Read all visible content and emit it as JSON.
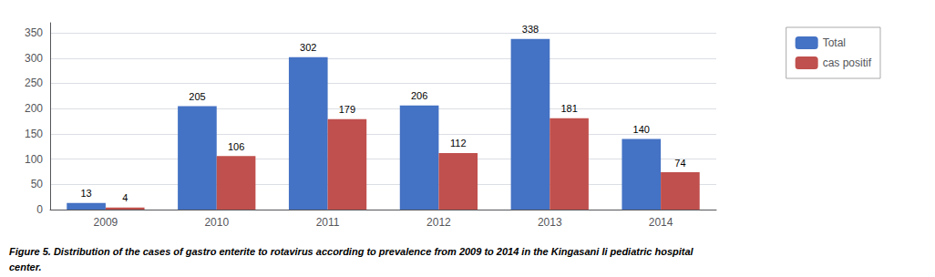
{
  "chart_data": {
    "type": "bar",
    "categories": [
      "2009",
      "2010",
      "2011",
      "2012",
      "2013",
      "2014"
    ],
    "series": [
      {
        "name": "Total",
        "color": "#4472C4",
        "values": [
          13,
          205,
          302,
          206,
          338,
          140
        ]
      },
      {
        "name": "cas positif",
        "color": "#C0504D",
        "values": [
          4,
          106,
          179,
          112,
          181,
          74
        ]
      }
    ],
    "ylim": [
      0,
      370
    ],
    "yticks": [
      0,
      50,
      100,
      150,
      200,
      250,
      300,
      350
    ],
    "grid": true,
    "legend": "right",
    "data_labels": true,
    "annotations": [
      "Figure 5. Distribution of the cases of gastro enterite to rotavirus according to prevalence from 2009 to 2014 in the Kingasani Ii pediatric hospital",
      "center."
    ]
  }
}
